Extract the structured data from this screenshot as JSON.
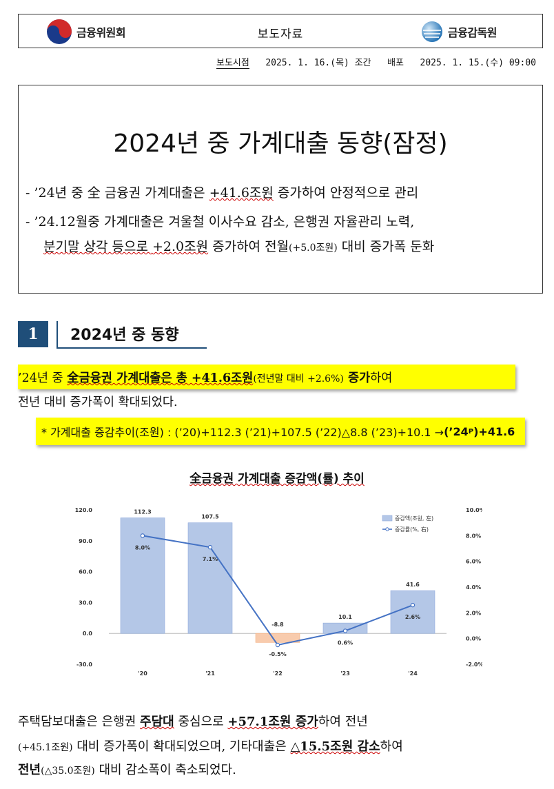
{
  "header": {
    "fsc_name": "금융위원회",
    "press_label": "보도자료",
    "fss_name": "금융감독원"
  },
  "release": {
    "time_label": "보도시점",
    "time_value": "2025. 1. 16.(목) 조간",
    "dist_label": "배포",
    "dist_value": "2025. 1. 15.(수) 09:00"
  },
  "title": "2024년 중 가계대출 동향(잠정)",
  "bullets": {
    "b1_pre": "- ’24년 중 全 금융권 가계대출은 ",
    "b1_val": "+41.6조원",
    "b1_post": " 증가하여 안정적으로 관리",
    "b2_pre": "- ’24.12월중 가계대출은 겨울철 이사수요 감소, 은행권 자율관리 노력,",
    "b3_pre": "분기말 상각 등으로 ",
    "b3_val": "+2.0조원",
    "b3_mid": " 증가하여 전월",
    "b3_small": "(+5.0조원)",
    "b3_post": " 대비 증가폭 둔화"
  },
  "section": {
    "number": "1",
    "title": "2024년 중 동향"
  },
  "para1": {
    "a_pre": "  ’24년 중 ",
    "a_bold": "全금융권 가계대출은 총 +41.6조원",
    "a_small": "(전년말 대비 +2.6%)",
    "a_bold2": " 증가",
    "a_post": "하여",
    "b": "전년 대비 증가폭이 확대되었다."
  },
  "trend": {
    "label": "* 가계대출 증감추이(조원) : (’20)+112.3  (’21)+107.5  (’22)△8.8  (’23)+10.1  →  ",
    "last_pre": "(’24",
    "last_sup": "P",
    "last_post": ")+41.6"
  },
  "chart_title": "全금융권 가계대출 증감액(률) 추이",
  "chart_data": {
    "type": "bar",
    "categories": [
      "'20",
      "'21",
      "'22",
      "'23",
      "'24"
    ],
    "series": [
      {
        "name": "증감액(조원, 左)",
        "values": [
          112.3,
          107.5,
          -8.8,
          10.1,
          41.6
        ],
        "type": "bar"
      },
      {
        "name": "증감률(%, 右)",
        "values": [
          8.0,
          7.1,
          -0.5,
          0.6,
          2.6
        ],
        "type": "line"
      }
    ],
    "value_labels": [
      "112.3",
      "107.5",
      "-8.8",
      "10.1",
      "41.6"
    ],
    "rate_labels": [
      "8.0%",
      "7.1%",
      "-0.5%",
      "0.6%",
      "2.6%"
    ],
    "y_left": {
      "range": [
        -30,
        120
      ],
      "ticks": [
        "-30.0",
        "0.0",
        "30.0",
        "60.0",
        "90.0",
        "120.0"
      ]
    },
    "y_right": {
      "range": [
        -2,
        10
      ],
      "ticks": [
        "-2.0%",
        "0.0%",
        "2.0%",
        "4.0%",
        "6.0%",
        "8.0%",
        "10.0%"
      ]
    },
    "legend": "top-right",
    "colors": {
      "bar_pos": "#b4c7e7",
      "bar_neg": "#f8cbad",
      "line": "#4472c4"
    }
  },
  "para2": {
    "a_pre": "  주택담보대출은 은행권 ",
    "a_bold": "주담대",
    "a_mid": " 중심으로 ",
    "a_val": "+57.1조원 증가",
    "a_post": "하여 전년",
    "b_small": "(+45.1조원)",
    "b_mid": " 대비 증가폭이 확대되었으며, 기타대출은 ",
    "b_val": "△15.5조원 감소",
    "b_post": "하여",
    "c_bold": "전년",
    "c_small": "(△35.0조원)",
    "c_post": " 대비 감소폭이 축소되었다."
  }
}
